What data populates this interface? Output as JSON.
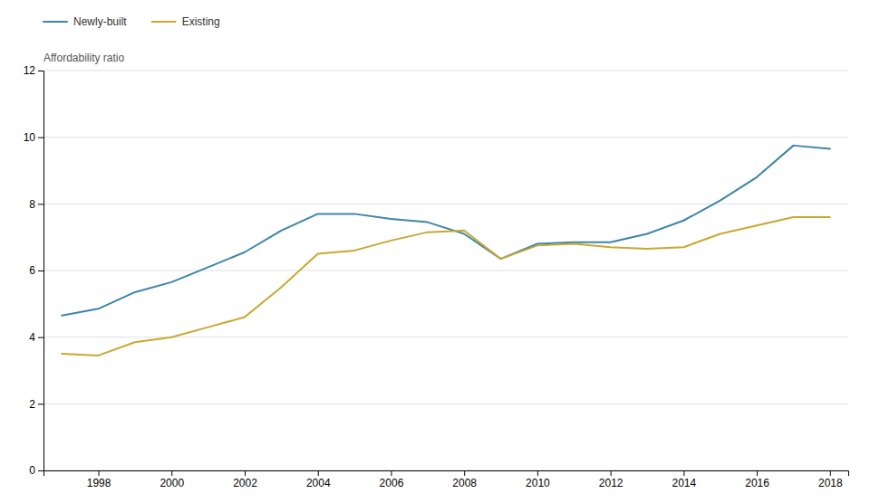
{
  "chart_data": {
    "type": "line",
    "ylabel": "Affordability ratio",
    "x": [
      1997,
      1998,
      1999,
      2000,
      2001,
      2002,
      2003,
      2004,
      2005,
      2006,
      2007,
      2008,
      2009,
      2010,
      2011,
      2012,
      2013,
      2014,
      2015,
      2016,
      2017,
      2018
    ],
    "series": [
      {
        "name": "Newly-built",
        "color": "#3d85a8",
        "values": [
          4.65,
          4.85,
          5.35,
          5.65,
          6.1,
          6.55,
          7.2,
          7.7,
          7.7,
          7.55,
          7.45,
          7.1,
          6.35,
          6.8,
          6.85,
          6.85,
          7.1,
          7.5,
          8.1,
          8.8,
          9.75,
          9.65
        ]
      },
      {
        "name": "Existing",
        "color": "#c8a830",
        "values": [
          3.5,
          3.45,
          3.85,
          4.0,
          4.3,
          4.6,
          5.5,
          6.5,
          6.6,
          6.9,
          7.15,
          7.2,
          6.35,
          6.75,
          6.8,
          6.7,
          6.65,
          6.7,
          7.1,
          7.35,
          7.6,
          7.6
        ]
      }
    ],
    "xlim": [
      1996.5,
      2018.5
    ],
    "xticks": [
      1998,
      2000,
      2002,
      2004,
      2006,
      2008,
      2010,
      2012,
      2014,
      2016,
      2018
    ],
    "ylim": [
      0,
      12
    ],
    "yticks": [
      0,
      2,
      4,
      6,
      8,
      10,
      12
    ],
    "grid": true,
    "legend": "top-left"
  }
}
